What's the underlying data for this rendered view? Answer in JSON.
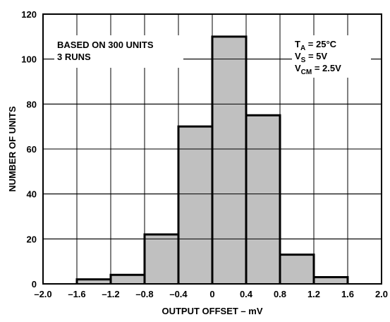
{
  "chart_data": {
    "type": "bar",
    "subtype": "histogram",
    "bin_edges": [
      -1.6,
      -1.2,
      -0.8,
      -0.4,
      0,
      0.4,
      0.8,
      1.2,
      1.6
    ],
    "values": [
      2,
      4,
      22,
      70,
      110,
      75,
      13,
      3
    ],
    "xlabel": "OUTPUT OFFSET – mV",
    "ylabel": "NUMBER OF UNITS",
    "xlim": [
      -2.0,
      2.0
    ],
    "ylim": [
      0,
      120
    ],
    "x_ticks": [
      "–2.0",
      "–1.6",
      "–1.2",
      "–0.8",
      "–0.4",
      "0",
      "0.4",
      "0.8",
      "1.2",
      "1.6",
      "2.0"
    ],
    "y_ticks": [
      "0",
      "20",
      "40",
      "60",
      "80",
      "100",
      "120"
    ],
    "grid": true,
    "annotations_left": [
      "BASED ON 300 UNITS",
      "3 RUNS"
    ],
    "annotations_right": [
      {
        "main": "T",
        "sub": "A",
        "rest": " = 25°C"
      },
      {
        "main": "V",
        "sub": "S",
        "rest": " = 5V"
      },
      {
        "main": "V",
        "sub": "CM",
        "rest": " = 2.5V"
      }
    ],
    "bar_color": "#c0c0c0",
    "line_color": "#000000"
  }
}
